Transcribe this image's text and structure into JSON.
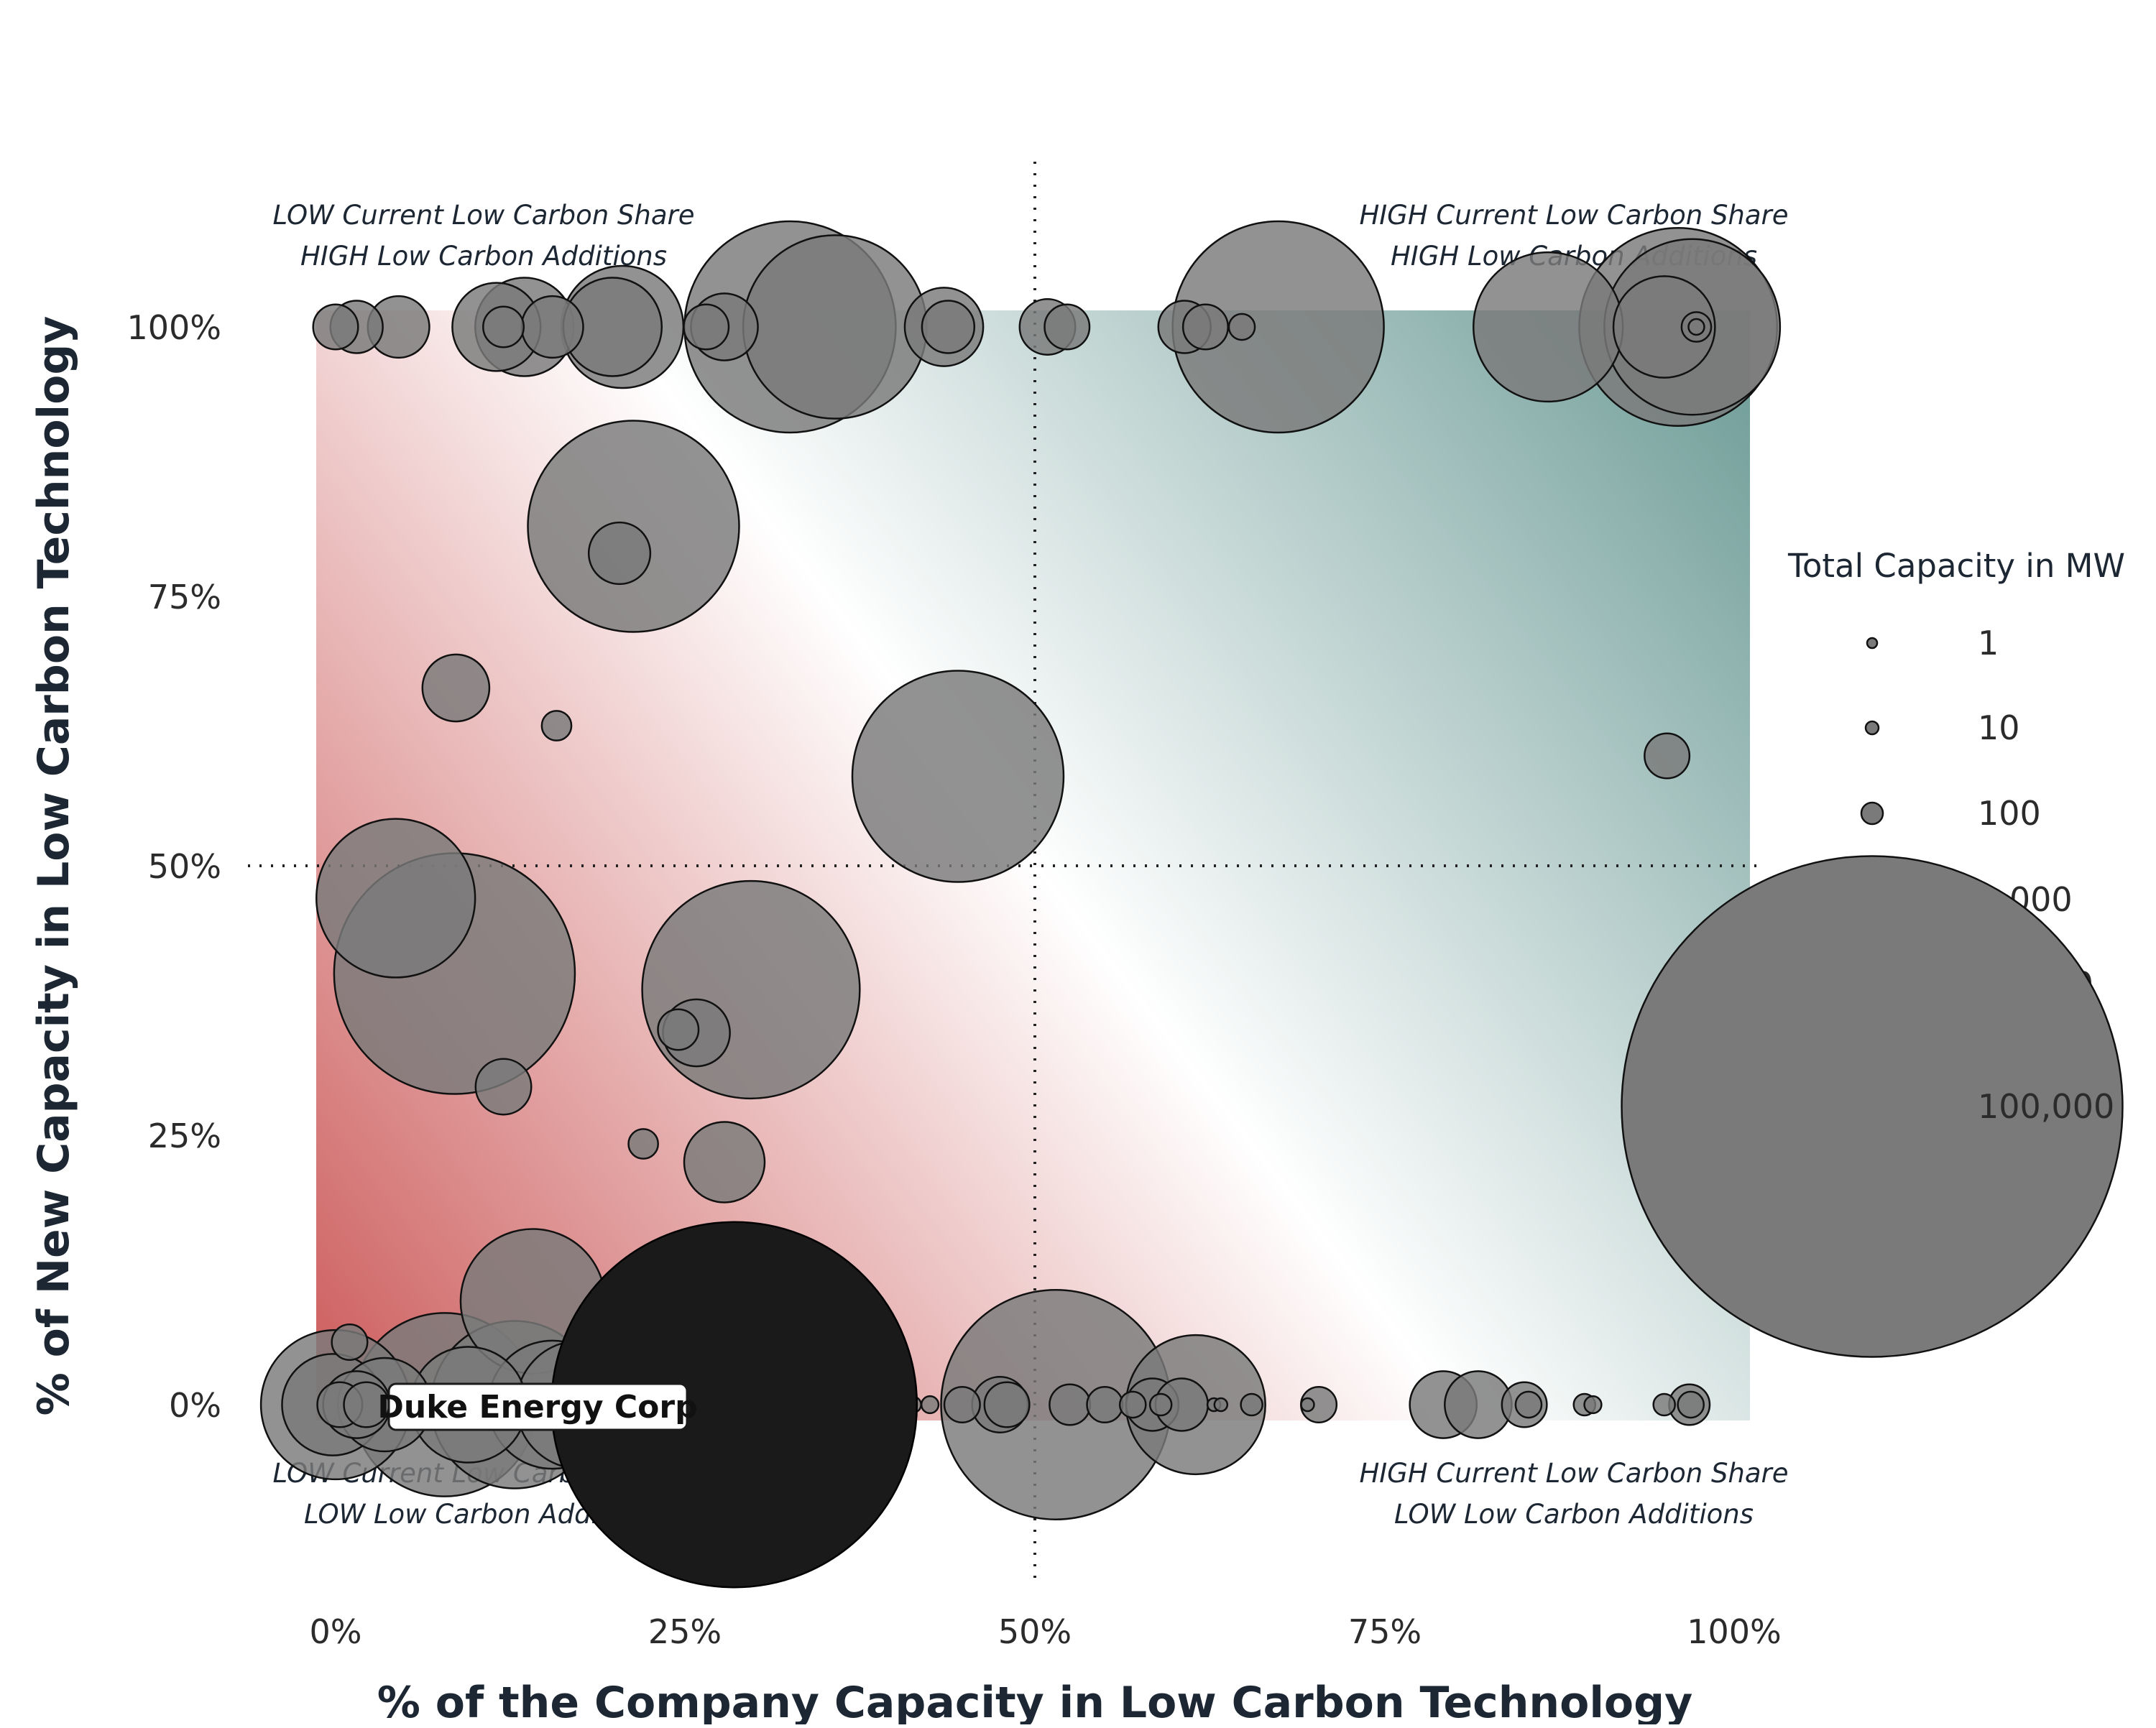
{
  "chart_data": {
    "type": "scatter",
    "xlabel": "% of the Company Capacity in Low Carbon Technology",
    "ylabel": "% of New Capacity in Low Carbon Technology",
    "xlim": [
      0,
      100
    ],
    "ylim": [
      0,
      100
    ],
    "x_ticks": [
      "0%",
      "25%",
      "50%",
      "75%",
      "100%"
    ],
    "y_ticks": [
      "0%",
      "25%",
      "50%",
      "75%",
      "100%"
    ],
    "reference_lines": {
      "x": 50,
      "y": 50,
      "style": "dotted"
    },
    "background_gradient": {
      "low": "#cc5a5a",
      "mid": "#ffffff",
      "high": "#6b9a95"
    },
    "quadrant_labels": {
      "top_left": [
        "LOW Current Low Carbon Share",
        "HIGH Low Carbon Additions"
      ],
      "top_right": [
        "HIGH Current Low Carbon Share",
        "HIGH Low Carbon Additions"
      ],
      "bottom_left": [
        "LOW Current Low Carbon Share",
        "LOW Low Carbon Additions"
      ],
      "bottom_right": [
        "HIGH Current Low Carbon Share",
        "LOW Low Carbon Additions"
      ]
    },
    "size_legend": {
      "title": "Total Capacity in MW",
      "entries": [
        {
          "label": "1",
          "value": 1
        },
        {
          "label": "10",
          "value": 10
        },
        {
          "label": "100",
          "value": 100
        },
        {
          "label": "1,000",
          "value": 1000
        },
        {
          "label": "10,000",
          "value": 10000
        },
        {
          "label": "100,000",
          "value": 100000
        }
      ]
    },
    "highlight": {
      "name": "Duke Energy Corp",
      "x": 28.5,
      "y": 0,
      "size": 50000,
      "color": "#1a1a1a"
    },
    "point_color": "#7a7a7a",
    "points": [
      {
        "x": 0,
        "y": 100,
        "size": 500
      },
      {
        "x": 1.5,
        "y": 100,
        "size": 700
      },
      {
        "x": 4.5,
        "y": 100,
        "size": 1000
      },
      {
        "x": 11.5,
        "y": 100,
        "size": 2200
      },
      {
        "x": 12,
        "y": 100,
        "size": 400
      },
      {
        "x": 13.5,
        "y": 100,
        "size": 2800
      },
      {
        "x": 15.5,
        "y": 100,
        "size": 1000
      },
      {
        "x": 19.8,
        "y": 100,
        "size": 2800
      },
      {
        "x": 20.5,
        "y": 100,
        "size": 4500
      },
      {
        "x": 26.5,
        "y": 100,
        "size": 500
      },
      {
        "x": 27.8,
        "y": 100,
        "size": 1200
      },
      {
        "x": 32.5,
        "y": 100,
        "size": 15000
      },
      {
        "x": 35.7,
        "y": 100,
        "size": 11000
      },
      {
        "x": 43.5,
        "y": 100,
        "size": 1700
      },
      {
        "x": 43.8,
        "y": 100,
        "size": 700
      },
      {
        "x": 50.9,
        "y": 100,
        "size": 800
      },
      {
        "x": 52.3,
        "y": 100,
        "size": 500
      },
      {
        "x": 60.7,
        "y": 100,
        "size": 700
      },
      {
        "x": 62.2,
        "y": 100,
        "size": 500
      },
      {
        "x": 64.8,
        "y": 100,
        "size": 150
      },
      {
        "x": 67.4,
        "y": 100,
        "size": 15000
      },
      {
        "x": 86.7,
        "y": 100,
        "size": 7000
      },
      {
        "x": 95,
        "y": 100,
        "size": 3000
      },
      {
        "x": 96,
        "y": 100,
        "size": 13000
      },
      {
        "x": 97,
        "y": 100,
        "size": 10000
      },
      {
        "x": 97.3,
        "y": 100,
        "size": 200
      },
      {
        "x": 97.3,
        "y": 100,
        "size": 50
      },
      {
        "x": 21.3,
        "y": 81.5,
        "size": 15000
      },
      {
        "x": 20.3,
        "y": 79,
        "size": 1000
      },
      {
        "x": 8.6,
        "y": 66.5,
        "size": 1200
      },
      {
        "x": 15.8,
        "y": 63,
        "size": 200
      },
      {
        "x": 44.5,
        "y": 58.3,
        "size": 15000
      },
      {
        "x": 95.2,
        "y": 60.2,
        "size": 500
      },
      {
        "x": 4.3,
        "y": 47,
        "size": 8000
      },
      {
        "x": 8.5,
        "y": 40,
        "size": 20000
      },
      {
        "x": 29.7,
        "y": 38.5,
        "size": 16000
      },
      {
        "x": 24.5,
        "y": 34.8,
        "size": 400
      },
      {
        "x": 25.8,
        "y": 34.5,
        "size": 1200
      },
      {
        "x": 12,
        "y": 29.5,
        "size": 800
      },
      {
        "x": 22,
        "y": 24.2,
        "size": 200
      },
      {
        "x": 27.8,
        "y": 22.5,
        "size": 1800
      },
      {
        "x": 14.1,
        "y": 9.6,
        "size": 6500
      },
      {
        "x": 1,
        "y": 5.8,
        "size": 300
      },
      {
        "x": 0,
        "y": 0,
        "size": 7000
      },
      {
        "x": -0.2,
        "y": 0,
        "size": 3000
      },
      {
        "x": 0.3,
        "y": 0,
        "size": 500
      },
      {
        "x": 1.5,
        "y": 0,
        "size": 1200
      },
      {
        "x": 2.2,
        "y": 0,
        "size": 500
      },
      {
        "x": 3.5,
        "y": 0,
        "size": 2500
      },
      {
        "x": 7.8,
        "y": 0,
        "size": 11000
      },
      {
        "x": 9.5,
        "y": 0,
        "size": 4000
      },
      {
        "x": 12.8,
        "y": 0,
        "size": 9000
      },
      {
        "x": 15.5,
        "y": 0,
        "size": 5000
      },
      {
        "x": 17.5,
        "y": 0,
        "size": 5000
      },
      {
        "x": 23.5,
        "y": 0,
        "size": 1000
      },
      {
        "x": 27.7,
        "y": 0,
        "size": 400
      },
      {
        "x": 30.5,
        "y": 0,
        "size": 8000
      },
      {
        "x": 33.8,
        "y": 0,
        "size": 30
      },
      {
        "x": 34.3,
        "y": 0,
        "size": 30
      },
      {
        "x": 35,
        "y": 0,
        "size": 2000
      },
      {
        "x": 39.3,
        "y": 0,
        "size": 60
      },
      {
        "x": 41.3,
        "y": 0,
        "size": 50
      },
      {
        "x": 42.5,
        "y": 0,
        "size": 60
      },
      {
        "x": 44.8,
        "y": 0,
        "size": 300
      },
      {
        "x": 47.5,
        "y": 0,
        "size": 800
      },
      {
        "x": 48,
        "y": 0,
        "size": 500
      },
      {
        "x": 51.5,
        "y": 0,
        "size": 18000
      },
      {
        "x": 52.5,
        "y": 0,
        "size": 400
      },
      {
        "x": 55,
        "y": 0,
        "size": 300
      },
      {
        "x": 57,
        "y": 0,
        "size": 150
      },
      {
        "x": 58.4,
        "y": 0,
        "size": 700
      },
      {
        "x": 59,
        "y": 0,
        "size": 100
      },
      {
        "x": 60.5,
        "y": 0,
        "size": 700
      },
      {
        "x": 61.5,
        "y": 0,
        "size": 6000
      },
      {
        "x": 62.8,
        "y": 0,
        "size": 30
      },
      {
        "x": 63.3,
        "y": 0,
        "size": 30
      },
      {
        "x": 65.5,
        "y": 0,
        "size": 100
      },
      {
        "x": 69.5,
        "y": 0,
        "size": 30
      },
      {
        "x": 70.3,
        "y": 0,
        "size": 300
      },
      {
        "x": 79.2,
        "y": 0,
        "size": 1200
      },
      {
        "x": 81.7,
        "y": 0,
        "size": 1200
      },
      {
        "x": 85,
        "y": 0,
        "size": 500
      },
      {
        "x": 85.3,
        "y": 0,
        "size": 150
      },
      {
        "x": 89.3,
        "y": 0,
        "size": 100
      },
      {
        "x": 89.9,
        "y": 0,
        "size": 60
      },
      {
        "x": 95,
        "y": 0,
        "size": 100
      },
      {
        "x": 96.8,
        "y": 0,
        "size": 400
      },
      {
        "x": 96.9,
        "y": 0,
        "size": 150
      }
    ]
  }
}
